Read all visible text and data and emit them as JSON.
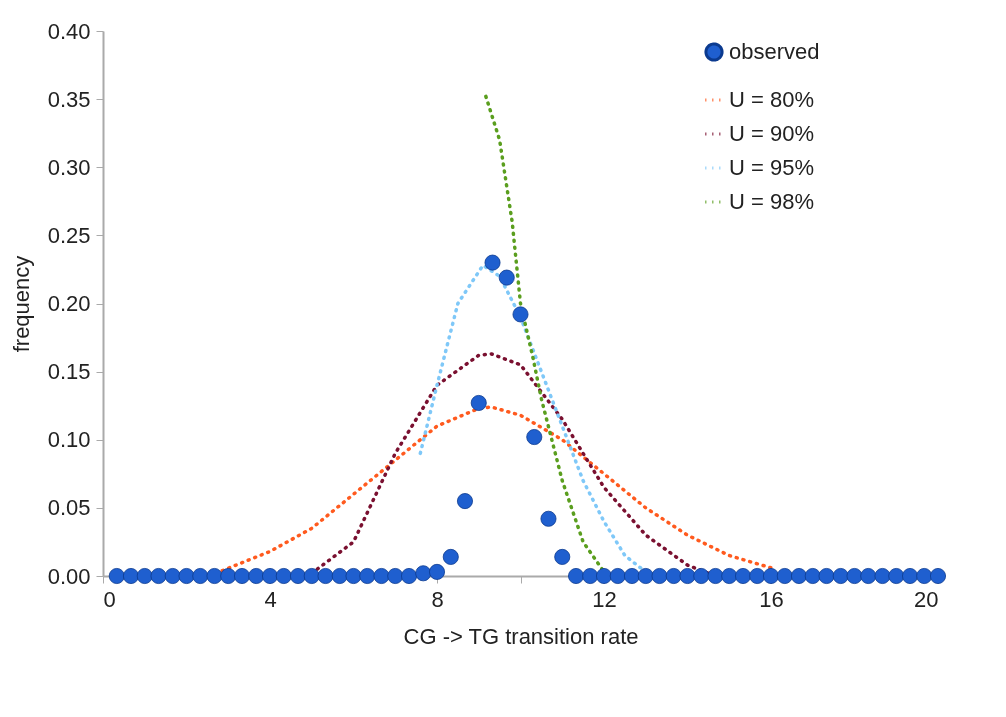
{
  "chart_data": {
    "type": "scatter",
    "xlabel": "CG -> TG transition rate",
    "ylabel": "frequency",
    "xlim": [
      0,
      20
    ],
    "ylim": [
      0,
      0.4
    ],
    "xticks": [
      0,
      {
        "value": 2,
        "label": null
      },
      4,
      {
        "value": 6,
        "label": null
      },
      8,
      {
        "value": 10,
        "label": null
      },
      12,
      {
        "value": 14,
        "label": null
      },
      16,
      {
        "value": 18,
        "label": null
      },
      20
    ],
    "yticks": [
      {
        "value": 0,
        "label": "0.00"
      },
      {
        "value": 0.05,
        "label": "0.05"
      },
      {
        "value": 0.1,
        "label": "0.10"
      },
      {
        "value": 0.15,
        "label": "0.15"
      },
      {
        "value": 0.2,
        "label": "0.20"
      },
      {
        "value": 0.25,
        "label": "0.25"
      },
      {
        "value": 0.3,
        "label": "0.30"
      },
      {
        "value": 0.35,
        "label": "0.35"
      },
      {
        "value": 0.4,
        "label": "0.40"
      }
    ],
    "grid": false,
    "legend": "top right",
    "series": [
      {
        "name": "observed",
        "marker": "circle",
        "color": "#1f5fcf",
        "x": [
          0.33,
          0.67,
          1,
          1.33,
          1.67,
          2,
          2.33,
          2.67,
          3,
          3.33,
          3.67,
          4,
          4.33,
          4.67,
          5,
          5.33,
          5.67,
          6,
          6.33,
          6.67,
          7,
          7.33,
          7.67,
          8,
          8.33,
          8.67,
          9,
          9.33,
          9.67,
          10,
          10.33,
          10.67,
          11,
          11.33,
          11.67,
          12,
          12.33,
          12.67,
          13,
          13.33,
          13.67,
          14,
          14.33,
          14.67,
          15,
          15.33,
          15.67,
          16,
          16.33,
          16.67,
          17,
          17.33,
          17.67,
          18,
          18.33,
          18.67,
          19,
          19.33,
          19.67,
          20
        ],
        "values": [
          0,
          0,
          0,
          0,
          0,
          0,
          0,
          0,
          0,
          0,
          0,
          0,
          0,
          0,
          0,
          0,
          0,
          0,
          0,
          0,
          0,
          0,
          0.002,
          0.003,
          0.014,
          0.055,
          0.127,
          0.23,
          0.219,
          0.192,
          0.102,
          0.042,
          0.014,
          0,
          0,
          0,
          0,
          0,
          0,
          0,
          0,
          0,
          0,
          0,
          0,
          0,
          0,
          0,
          0,
          0,
          0,
          0,
          0,
          0,
          0,
          0,
          0,
          0,
          0,
          0
        ]
      },
      {
        "name": "U = 80%",
        "type": "line",
        "marker": "none",
        "line_style": "dotted",
        "color": "#ff5a1e",
        "x": [
          2.7,
          4,
          5,
          6,
          7,
          8,
          9,
          9.3,
          10,
          11,
          12,
          13,
          14,
          15,
          16
        ],
        "values": [
          0.002,
          0.018,
          0.035,
          0.06,
          0.085,
          0.11,
          0.123,
          0.124,
          0.118,
          0.1,
          0.075,
          0.05,
          0.03,
          0.015,
          0.006
        ]
      },
      {
        "name": "U = 90%",
        "type": "line",
        "marker": "none",
        "line_style": "dotted",
        "color": "#7a1030",
        "x": [
          5,
          6,
          7,
          8,
          9,
          9.3,
          10,
          11,
          12,
          13,
          14,
          14.5
        ],
        "values": [
          0.002,
          0.025,
          0.09,
          0.14,
          0.162,
          0.163,
          0.155,
          0.115,
          0.065,
          0.03,
          0.008,
          0.002
        ]
      },
      {
        "name": "U = 95%",
        "type": "line",
        "marker": "none",
        "line_style": "dotted",
        "color": "#7fc8f8",
        "x": [
          7.6,
          8,
          8.5,
          9.1,
          9.5,
          10,
          10.5,
          11,
          11.5,
          12,
          12.5,
          13
        ],
        "values": [
          0.09,
          0.14,
          0.2,
          0.228,
          0.22,
          0.19,
          0.15,
          0.11,
          0.07,
          0.04,
          0.015,
          0.003
        ]
      },
      {
        "name": "U = 98%",
        "type": "line",
        "marker": "none",
        "line_style": "dotted",
        "color": "#5a9e1e",
        "x": [
          9.17,
          9.5,
          9.8,
          10,
          10.3,
          10.5,
          11,
          11.5,
          12
        ],
        "values": [
          0.352,
          0.32,
          0.26,
          0.2,
          0.16,
          0.13,
          0.07,
          0.025,
          0.003
        ]
      }
    ]
  }
}
